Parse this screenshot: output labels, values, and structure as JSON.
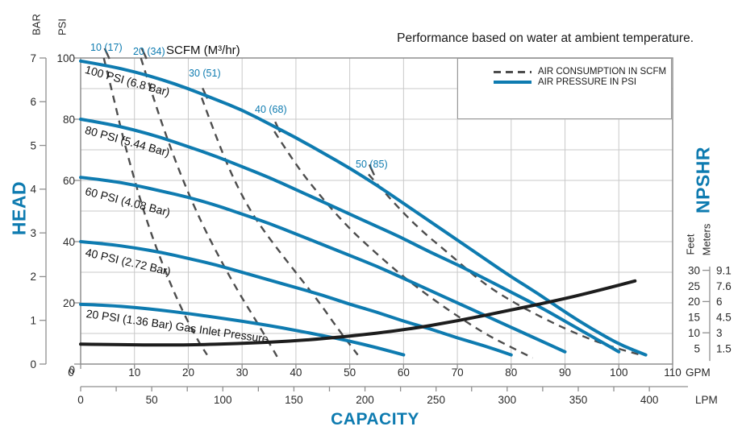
{
  "title": "Performance based on water at ambient temperature.",
  "legend": {
    "items": [
      {
        "label": "AIR CONSUMPTION IN SCFM",
        "style": "dashed"
      },
      {
        "label": "AIR PRESSURE IN PSI",
        "style": "solid"
      }
    ]
  },
  "colors": {
    "blue": "#0e7bb0",
    "black": "#1d1d1d",
    "dash": "#4d4d4d",
    "grid": "#c9c9c9",
    "border": "#8f8f8f",
    "tick_text": "#2a2a2a"
  },
  "axes": {
    "head": {
      "title": "HEAD",
      "bar": {
        "title": "BAR",
        "ticks": [
          0,
          1,
          2,
          3,
          4,
          5,
          6,
          7
        ]
      },
      "psi": {
        "title": "PSI",
        "ticks": [
          0,
          20,
          40,
          60,
          80,
          100
        ]
      }
    },
    "capacity": {
      "title": "CAPACITY",
      "gpm": {
        "unit": "GPM",
        "min": 0,
        "max": 110,
        "step": 10
      },
      "lpm": {
        "unit": "LPM",
        "min": 0,
        "max": 400,
        "tick_step": 25,
        "label_step": 50
      }
    },
    "npshr": {
      "title": "NPSHR",
      "feet": {
        "title": "Feet",
        "ticks": [
          30,
          25,
          20,
          15,
          10,
          5
        ]
      },
      "meters": {
        "title": "Meters",
        "ticks": [
          "9.1",
          "7.6",
          "6",
          "4.5",
          "3",
          "1.5"
        ]
      }
    }
  },
  "chart_data": {
    "type": "line",
    "x_unit": "GPM (bottom also shown as LPM)",
    "y_unit": "head in PSI (also shown as BAR); NPSHR curve read in Feet/Meters",
    "scfm_header": "SCFM (M³/hr)",
    "pressure_curves": [
      {
        "name": "100-psi",
        "label": "100 PSI (6.8 Bar)",
        "points": [
          [
            0,
            99
          ],
          [
            5,
            97.5
          ],
          [
            10,
            95.5
          ],
          [
            15,
            93
          ],
          [
            20,
            90
          ],
          [
            25,
            86.5
          ],
          [
            30,
            83
          ],
          [
            35,
            78.5
          ],
          [
            40,
            74
          ],
          [
            45,
            69
          ],
          [
            50,
            64
          ],
          [
            55,
            58.5
          ],
          [
            60,
            52.5
          ],
          [
            65,
            46.5
          ],
          [
            70,
            40.5
          ],
          [
            75,
            34.5
          ],
          [
            80,
            28.5
          ],
          [
            85,
            23
          ],
          [
            90,
            17
          ],
          [
            95,
            11.5
          ],
          [
            100,
            6.5
          ],
          [
            105,
            3
          ]
        ]
      },
      {
        "name": "80-psi",
        "label": "80 PSI (5.44 Bar)",
        "points": [
          [
            0,
            80
          ],
          [
            5,
            78.5
          ],
          [
            10,
            76.5
          ],
          [
            15,
            74
          ],
          [
            20,
            71
          ],
          [
            25,
            68
          ],
          [
            30,
            64.5
          ],
          [
            35,
            61
          ],
          [
            40,
            57
          ],
          [
            45,
            53
          ],
          [
            50,
            49
          ],
          [
            55,
            45
          ],
          [
            60,
            41
          ],
          [
            65,
            36.5
          ],
          [
            70,
            32.5
          ],
          [
            75,
            28
          ],
          [
            80,
            23.5
          ],
          [
            85,
            19
          ],
          [
            90,
            14
          ],
          [
            95,
            9
          ],
          [
            100,
            4
          ]
        ]
      },
      {
        "name": "60-psi",
        "label": "60 PSI (4.08 Bar)",
        "points": [
          [
            0,
            61
          ],
          [
            5,
            60
          ],
          [
            10,
            58.5
          ],
          [
            15,
            56.5
          ],
          [
            20,
            54.5
          ],
          [
            25,
            52
          ],
          [
            30,
            49
          ],
          [
            35,
            46
          ],
          [
            40,
            42.5
          ],
          [
            45,
            39
          ],
          [
            50,
            35.5
          ],
          [
            55,
            32
          ],
          [
            60,
            28
          ],
          [
            65,
            24
          ],
          [
            70,
            20
          ],
          [
            75,
            16
          ],
          [
            80,
            12
          ],
          [
            85,
            8
          ],
          [
            90,
            4
          ]
        ]
      },
      {
        "name": "40-psi",
        "label": "40 PSI (2.72 Bar)",
        "points": [
          [
            0,
            40
          ],
          [
            5,
            39.2
          ],
          [
            10,
            38
          ],
          [
            15,
            36.5
          ],
          [
            20,
            34.5
          ],
          [
            25,
            32.5
          ],
          [
            30,
            30
          ],
          [
            35,
            27.5
          ],
          [
            40,
            25
          ],
          [
            45,
            22.5
          ],
          [
            50,
            19.5
          ],
          [
            55,
            17
          ],
          [
            60,
            14
          ],
          [
            65,
            11.5
          ],
          [
            70,
            8.5
          ],
          [
            75,
            6
          ],
          [
            80,
            3
          ]
        ]
      },
      {
        "name": "20-psi",
        "label": "20 PSI (1.36 Bar) Gas Inlet Pressure",
        "points": [
          [
            0,
            19.5
          ],
          [
            5,
            19.2
          ],
          [
            10,
            18.5
          ],
          [
            15,
            17.6
          ],
          [
            20,
            16.5
          ],
          [
            25,
            15.3
          ],
          [
            30,
            14
          ],
          [
            35,
            12.6
          ],
          [
            40,
            11
          ],
          [
            45,
            9.3
          ],
          [
            50,
            7.5
          ],
          [
            55,
            5.4
          ],
          [
            60,
            3
          ]
        ]
      }
    ],
    "consumption_curves": [
      {
        "name": "scfm-10",
        "label": "10 (17)",
        "points": [
          [
            4.3,
            100
          ],
          [
            6,
            88
          ],
          [
            8,
            73
          ],
          [
            10.5,
            57
          ],
          [
            13,
            43
          ],
          [
            16,
            29
          ],
          [
            19,
            17
          ],
          [
            22,
            7
          ],
          [
            23.5,
            3
          ]
        ]
      },
      {
        "name": "scfm-20",
        "label": "20 (34)",
        "points": [
          [
            11.2,
            100
          ],
          [
            13.5,
            87
          ],
          [
            16,
            74
          ],
          [
            19,
            60
          ],
          [
            22.5,
            46
          ],
          [
            26,
            34
          ],
          [
            29.5,
            23
          ],
          [
            33,
            13
          ],
          [
            36,
            4
          ],
          [
            36.8,
            1.5
          ]
        ]
      },
      {
        "name": "scfm-30",
        "label": "30 (51)",
        "points": [
          [
            22.5,
            87
          ],
          [
            25,
            75
          ],
          [
            28,
            62
          ],
          [
            31.5,
            50
          ],
          [
            35.5,
            40
          ],
          [
            39.5,
            31
          ],
          [
            44,
            21
          ],
          [
            48,
            11
          ],
          [
            51.5,
            3
          ]
        ]
      },
      {
        "name": "scfm-40",
        "label": "40 (68)",
        "points": [
          [
            36,
            76
          ],
          [
            40,
            65
          ],
          [
            44.5,
            55
          ],
          [
            49.5,
            45
          ],
          [
            55,
            36
          ],
          [
            61,
            27
          ],
          [
            68,
            18
          ],
          [
            75,
            10
          ],
          [
            80,
            5.5
          ],
          [
            84,
            2
          ]
        ]
      },
      {
        "name": "scfm-50",
        "label": "50 (85)",
        "points": [
          [
            53.5,
            62
          ],
          [
            58,
            53
          ],
          [
            63,
            44
          ],
          [
            68.5,
            36
          ],
          [
            75,
            26
          ],
          [
            82,
            18.5
          ],
          [
            90,
            11.5
          ],
          [
            97,
            6.5
          ],
          [
            104,
            3
          ]
        ]
      }
    ],
    "npshr_curve": {
      "name": "npshr",
      "unit": "feet",
      "points_feet": [
        [
          0,
          6.4
        ],
        [
          10,
          6.1
        ],
        [
          20,
          6.1
        ],
        [
          30,
          6.6
        ],
        [
          40,
          7.4
        ],
        [
          50,
          8.9
        ],
        [
          60,
          10.9
        ],
        [
          70,
          13.8
        ],
        [
          80,
          17.3
        ],
        [
          90,
          20.9
        ],
        [
          97,
          23.9
        ],
        [
          103,
          26.6
        ]
      ]
    }
  }
}
